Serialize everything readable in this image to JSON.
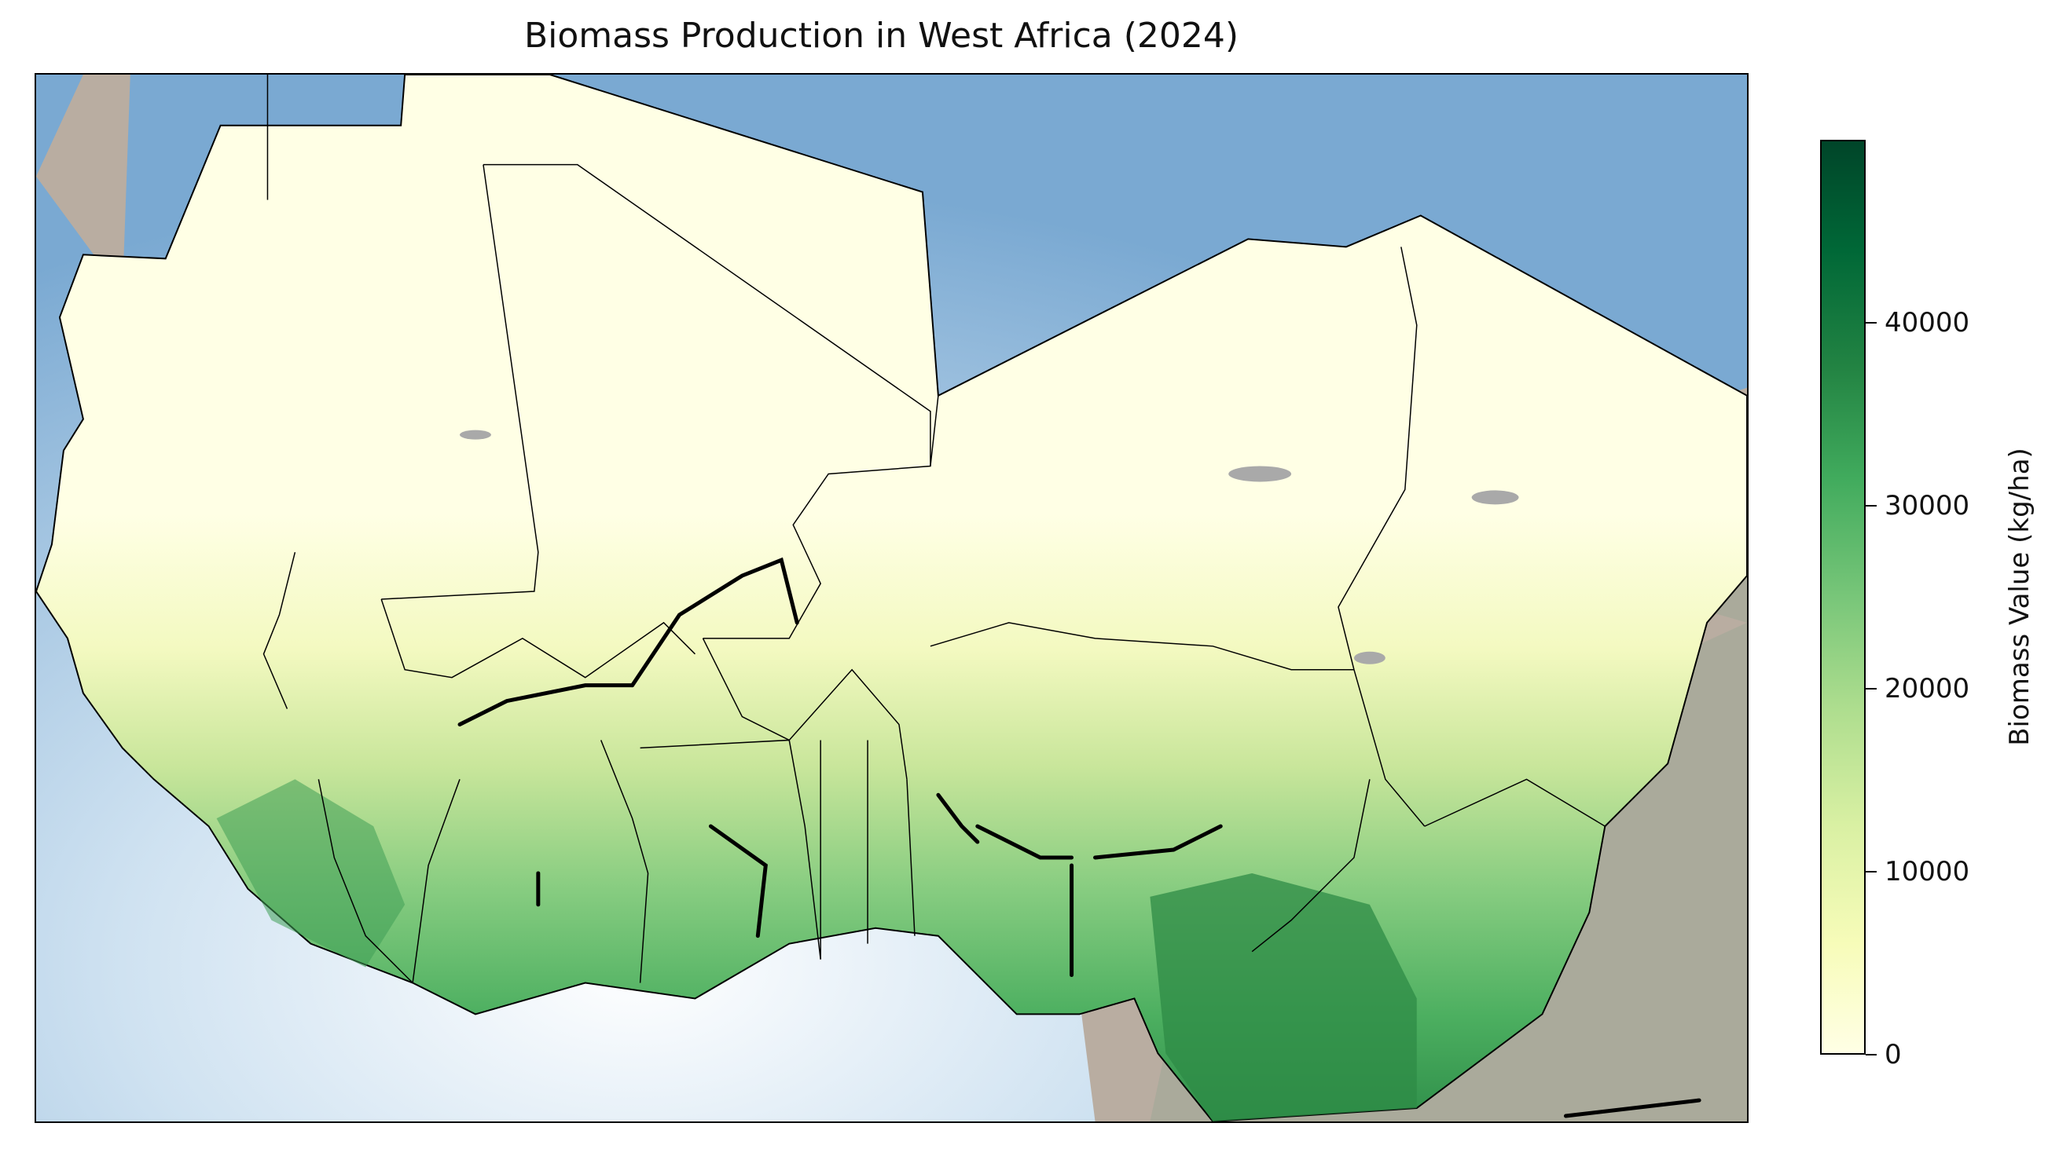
{
  "title": "Biomass Production in West Africa (2024)",
  "colorbar": {
    "label": "Biomass Value (kg/ha)",
    "min": 0,
    "max": 50000,
    "ticks": [
      "0",
      "10000",
      "20000",
      "30000",
      "40000"
    ],
    "tick_values": [
      0,
      10000,
      20000,
      30000,
      40000
    ],
    "colormap": "YlGn",
    "colors": [
      "#ffffe5",
      "#f7fcb9",
      "#d9f0a3",
      "#addd8e",
      "#78c679",
      "#41ab5d",
      "#238443",
      "#006837",
      "#004529"
    ]
  },
  "map": {
    "ocean_color": "#7fb0d6",
    "outside_land_color": "#b8ab9f",
    "no_data_color": "#a9a9a9",
    "border_color": "#000000"
  }
}
